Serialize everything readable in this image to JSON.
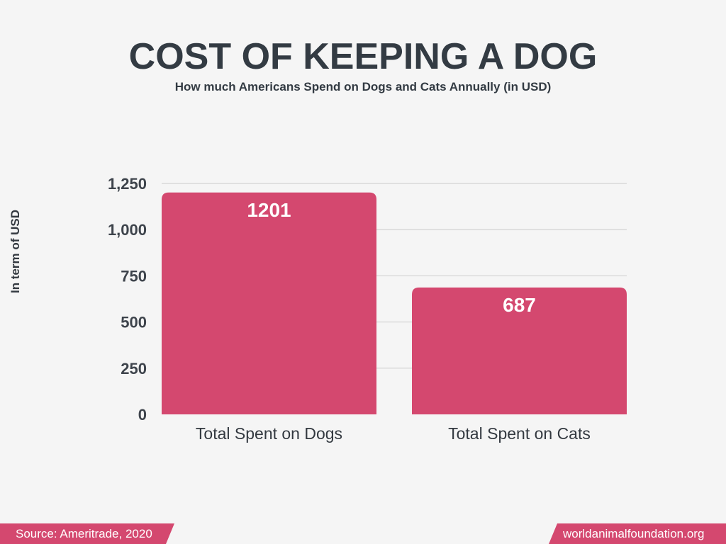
{
  "header": {
    "title": "COST OF KEEPING A DOG",
    "subtitle": "How much Americans Spend on Dogs and Cats Annually (in USD)"
  },
  "chart_data": {
    "type": "bar",
    "categories": [
      "Total Spent on Dogs",
      "Total Spent on Cats"
    ],
    "values": [
      1201,
      687
    ],
    "data_labels": [
      "1201",
      "687"
    ],
    "ylabel": "In term of USD",
    "xlabel": "",
    "ylim": [
      0,
      1250
    ],
    "yticks": [
      0,
      250,
      500,
      750,
      1000,
      1250
    ],
    "ytick_labels": [
      "0",
      "250",
      "500",
      "750",
      "1,000",
      "1,250"
    ],
    "grid": true,
    "bar_color": "#d4486f"
  },
  "footer": {
    "source": "Source: Ameritrade, 2020",
    "website": "worldanimalfoundation.org"
  },
  "colors": {
    "accent": "#d4486f",
    "text": "#333b43",
    "background": "#f5f5f5",
    "grid": "#cccccc"
  }
}
